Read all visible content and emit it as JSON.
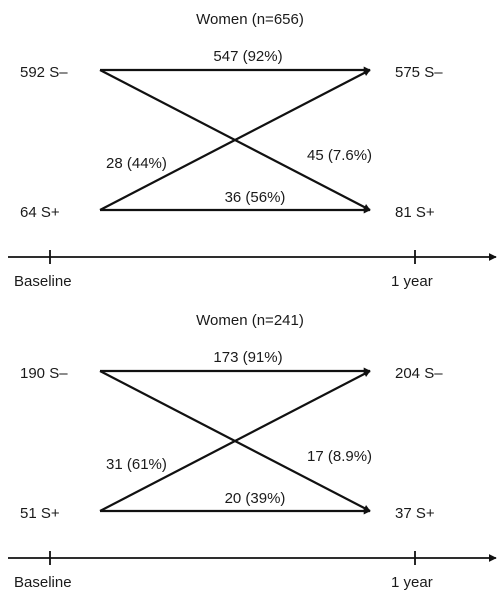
{
  "panels": [
    {
      "title": "Women (n=656)",
      "baseline_negative": "592 S–",
      "baseline_positive": "64 S+",
      "followup_negative": "575 S–",
      "followup_positive": "81 S+",
      "flow_neg_to_neg": "547 (92%)",
      "flow_neg_to_pos": "45 (7.6%)",
      "flow_pos_to_neg": "28 (44%)",
      "flow_pos_to_pos": "36 (56%)",
      "axis_start": "Baseline",
      "axis_end": "1 year"
    },
    {
      "title": "Women (n=241)",
      "baseline_negative": "190 S–",
      "baseline_positive": "51 S+",
      "followup_negative": "204 S–",
      "followup_positive": "37 S+",
      "flow_neg_to_neg": "173 (91%)",
      "flow_neg_to_pos": "17 (8.9%)",
      "flow_pos_to_neg": "31 (61%)",
      "flow_pos_to_pos": "20 (39%)",
      "axis_start": "Baseline",
      "axis_end": "1 year"
    }
  ]
}
